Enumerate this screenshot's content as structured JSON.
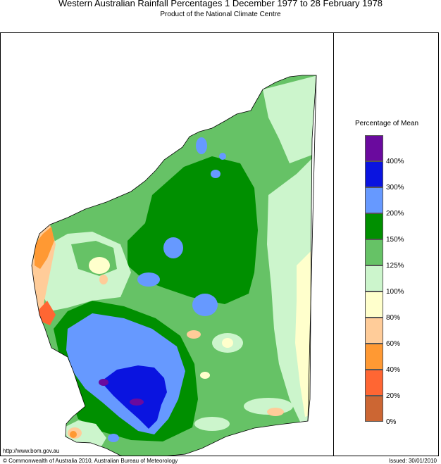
{
  "header": {
    "title": "Western Australian Rainfall Percentages 1 December 1977 to 28 February 1978",
    "subtitle": "Product of the National Climate Centre"
  },
  "legend": {
    "title": "Percentage of Mean",
    "bins": [
      {
        "label": "400%",
        "color": "#6a0a9e"
      },
      {
        "label": "300%",
        "color": "#0a14e0"
      },
      {
        "label": "200%",
        "color": "#6699ff"
      },
      {
        "label": "150%",
        "color": "#008f00"
      },
      {
        "label": "125%",
        "color": "#66c266"
      },
      {
        "label": "100%",
        "color": "#ccf5cc"
      },
      {
        "label": "80%",
        "color": "#ffffcc"
      },
      {
        "label": "60%",
        "color": "#ffcc99"
      },
      {
        "label": "40%",
        "color": "#ff9933"
      },
      {
        "label": "20%",
        "color": "#ff6633"
      },
      {
        "label": "0%",
        "color": "#cc6633"
      }
    ]
  },
  "footer": {
    "url": "http://www.bom.gov.au",
    "copyright": "© Commonwealth of Australia 2010, Australian Bureau of Meteorology",
    "issued": "Issued: 30/01/2010"
  }
}
